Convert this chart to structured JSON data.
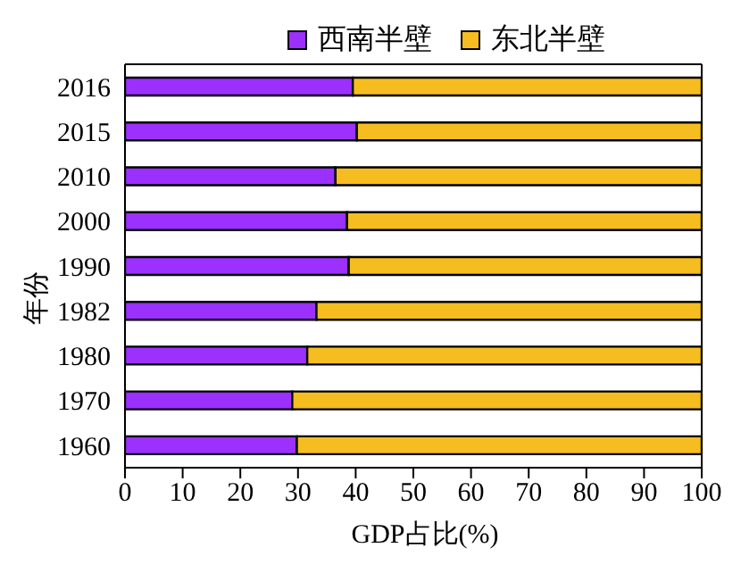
{
  "chart_data": {
    "type": "bar",
    "orientation": "horizontal",
    "stacked": true,
    "xlabel": "GDP占比(%)",
    "ylabel": "年份",
    "categories": [
      "2016",
      "2015",
      "2010",
      "2000",
      "1990",
      "1982",
      "1980",
      "1970",
      "1960"
    ],
    "series": [
      {
        "name": "西南半壁",
        "color": "#9b30ff",
        "values": [
          39.5,
          40.2,
          36.5,
          38.5,
          38.8,
          33.2,
          31.6,
          29,
          29.8
        ]
      },
      {
        "name": "东北半壁",
        "color": "#f5bd1f",
        "values": [
          60.5,
          59.8,
          63.5,
          61.5,
          61.2,
          66.8,
          68.4,
          71,
          70.2
        ]
      }
    ],
    "xlim": [
      0,
      100
    ],
    "xticks": [
      0,
      10,
      20,
      30,
      40,
      50,
      60,
      70,
      80,
      90,
      100
    ],
    "grid": false,
    "legend": "top"
  }
}
